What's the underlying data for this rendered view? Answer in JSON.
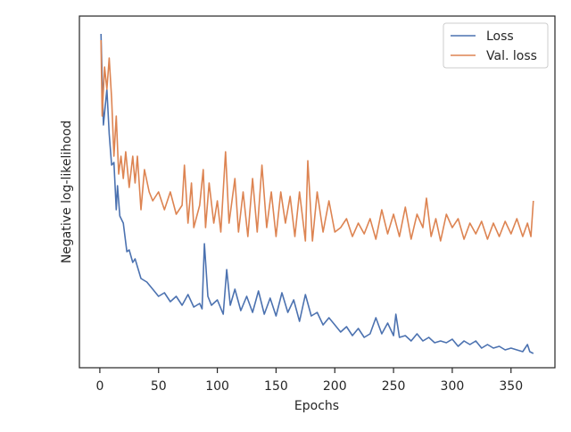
{
  "chart_data": {
    "type": "line",
    "xlabel": "Epochs",
    "ylabel": "Negative log-likelihood",
    "xlim": [
      -17.4,
      387.4
    ],
    "ylim": [
      0,
      394
    ],
    "xticks": [
      0,
      50,
      100,
      150,
      200,
      250,
      300,
      350
    ],
    "grid": false,
    "legend": "upper right",
    "series": [
      {
        "name": "Loss",
        "color": "#4c72b0",
        "x": [
          1,
          3,
          6,
          8,
          10,
          12,
          14,
          15,
          17,
          20,
          23,
          25,
          28,
          30,
          35,
          40,
          45,
          50,
          55,
          60,
          65,
          70,
          75,
          80,
          85,
          87,
          89,
          92,
          95,
          100,
          105,
          108,
          111,
          115,
          120,
          125,
          130,
          135,
          140,
          145,
          150,
          155,
          160,
          165,
          170,
          175,
          180,
          185,
          190,
          195,
          200,
          205,
          210,
          215,
          220,
          225,
          230,
          235,
          240,
          245,
          250,
          252,
          255,
          260,
          265,
          270,
          275,
          280,
          285,
          290,
          295,
          300,
          305,
          310,
          315,
          320,
          325,
          330,
          335,
          340,
          345,
          350,
          355,
          360,
          364,
          366,
          369
        ],
        "values": [
          374,
          272,
          312,
          262,
          227,
          230,
          177,
          204,
          170,
          162,
          130,
          132,
          118,
          122,
          100,
          96,
          88,
          80,
          84,
          74,
          80,
          70,
          82,
          68,
          72,
          66,
          139,
          80,
          70,
          76,
          60,
          110,
          70,
          88,
          64,
          80,
          62,
          86,
          60,
          78,
          58,
          84,
          62,
          76,
          52,
          82,
          58,
          62,
          48,
          56,
          48,
          40,
          46,
          36,
          44,
          34,
          38,
          56,
          38,
          50,
          36,
          60,
          34,
          36,
          30,
          38,
          30,
          34,
          28,
          30,
          28,
          32,
          24,
          30,
          26,
          30,
          22,
          26,
          22,
          24,
          20,
          22,
          20,
          18,
          26,
          18,
          16
        ]
      },
      {
        "name": "Val. loss",
        "color": "#dd8452",
        "x": [
          1,
          2,
          4,
          6,
          8,
          10,
          12,
          14,
          16,
          18,
          20,
          22,
          25,
          28,
          30,
          32,
          35,
          38,
          42,
          45,
          50,
          55,
          60,
          65,
          70,
          72,
          75,
          78,
          80,
          85,
          88,
          90,
          93,
          97,
          100,
          103,
          107,
          110,
          115,
          118,
          122,
          126,
          130,
          134,
          138,
          142,
          146,
          150,
          154,
          158,
          162,
          166,
          170,
          175,
          177,
          181,
          185,
          190,
          195,
          200,
          205,
          210,
          215,
          220,
          225,
          230,
          235,
          240,
          245,
          250,
          255,
          260,
          265,
          270,
          275,
          278,
          282,
          286,
          290,
          295,
          300,
          305,
          310,
          315,
          320,
          325,
          330,
          335,
          340,
          345,
          350,
          355,
          360,
          364,
          367,
          369
        ],
        "values": [
          367,
          282,
          337,
          312,
          347,
          302,
          237,
          282,
          217,
          237,
          212,
          242,
          202,
          237,
          207,
          237,
          177,
          222,
          197,
          187,
          197,
          177,
          197,
          172,
          182,
          227,
          162,
          207,
          157,
          182,
          222,
          157,
          207,
          162,
          187,
          152,
          242,
          162,
          212,
          152,
          197,
          147,
          212,
          152,
          227,
          157,
          197,
          147,
          197,
          162,
          192,
          147,
          197,
          142,
          232,
          142,
          197,
          152,
          187,
          152,
          157,
          167,
          147,
          162,
          150,
          167,
          144,
          177,
          150,
          172,
          147,
          180,
          144,
          172,
          157,
          190,
          147,
          167,
          142,
          172,
          157,
          167,
          144,
          162,
          150,
          164,
          144,
          162,
          147,
          164,
          150,
          167,
          147,
          162,
          147,
          187
        ]
      }
    ]
  }
}
